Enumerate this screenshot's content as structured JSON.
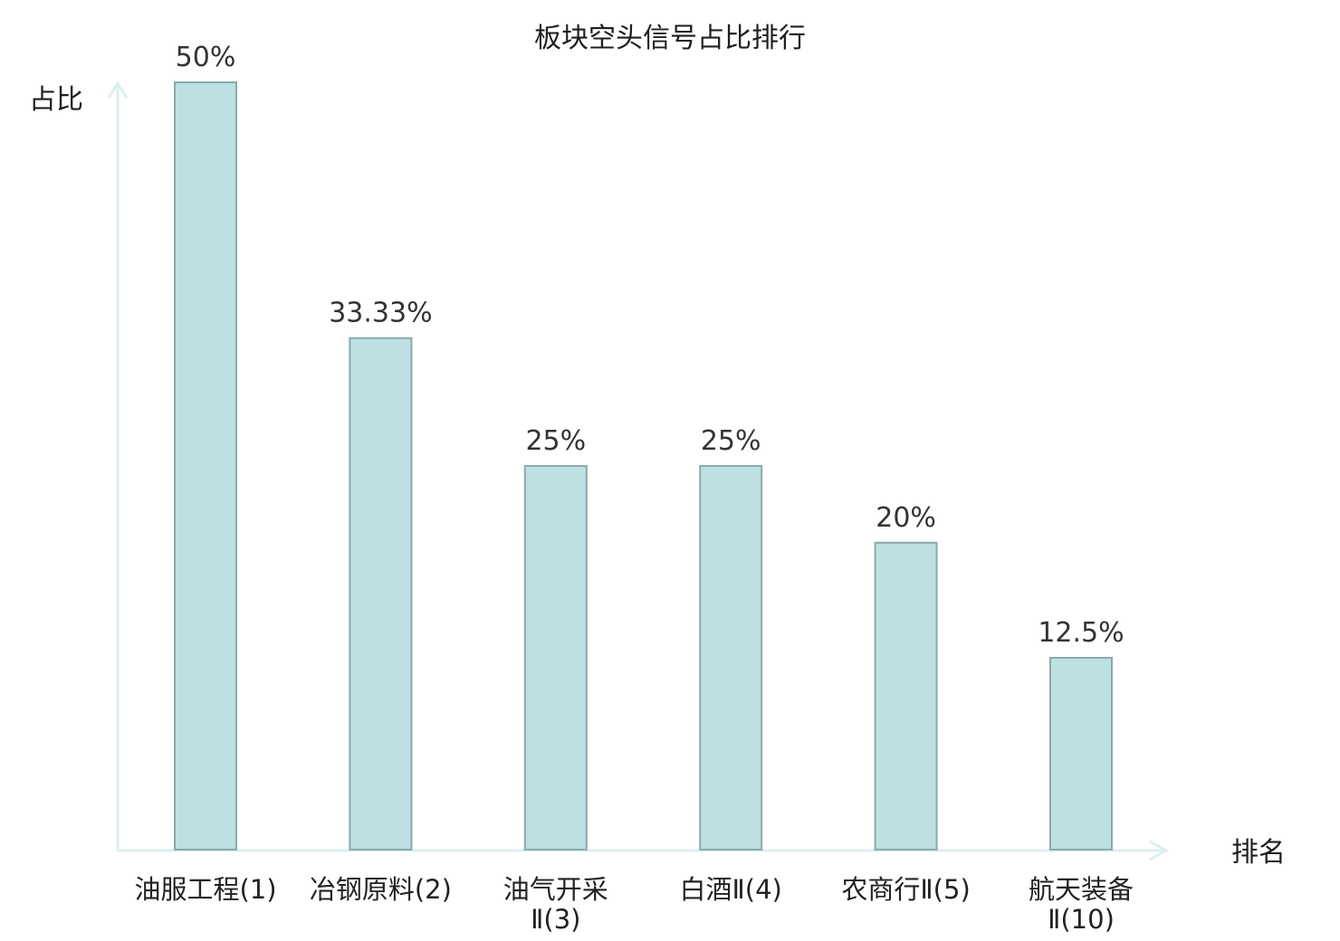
{
  "chart_data": {
    "type": "bar",
    "title": "板块空头信号占比排行",
    "ylabel": "占比",
    "xlabel": "排名",
    "ylim": [
      0,
      50
    ],
    "categories": [
      [
        "油服工程(1)"
      ],
      [
        "冶钢原料(2)"
      ],
      [
        "油气开采",
        "Ⅱ(3)"
      ],
      [
        "白酒Ⅱ(4)"
      ],
      [
        "农商行Ⅱ(5)"
      ],
      [
        "航天装备",
        "Ⅱ(10)"
      ]
    ],
    "values": [
      50,
      33.33,
      25,
      25,
      20,
      12.5
    ],
    "value_labels": [
      "50%",
      "33.33%",
      "25%",
      "25%",
      "20%",
      "12.5%"
    ],
    "highlight_index": 5
  },
  "colors": {
    "bar_fill": "#bde0e3",
    "bar_stroke": "#8aa9ad",
    "axis": "#dcefee",
    "highlight": "#e8201a"
  }
}
